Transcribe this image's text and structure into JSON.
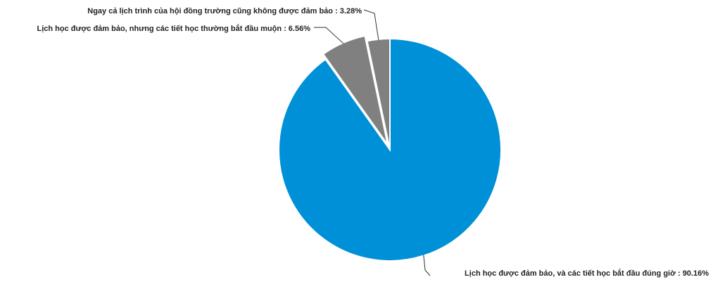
{
  "chart_data": {
    "type": "pie",
    "title": "",
    "slices": [
      {
        "label": "Lịch học được đảm bảo, và các tiết học bắt đầu đúng giờ : 90.16%",
        "value": 90.16,
        "color": "#0090d8"
      },
      {
        "label": "Lịch học được đảm bảo, nhưng các tiết học thường bắt đầu muộn : 6.56%",
        "value": 6.56,
        "color": "#808080"
      },
      {
        "label": "Ngay cả lịch trình của hội đồng trường cũng không được đảm bảo : 3.28%",
        "value": 3.28,
        "color": "#808080"
      }
    ],
    "start_angle": "12 o'clock",
    "direction": "clockwise",
    "exploded_slice": "Lịch học được đảm bảo, nhưng các tiết học thường bắt đầu muộn : 6.56%"
  }
}
